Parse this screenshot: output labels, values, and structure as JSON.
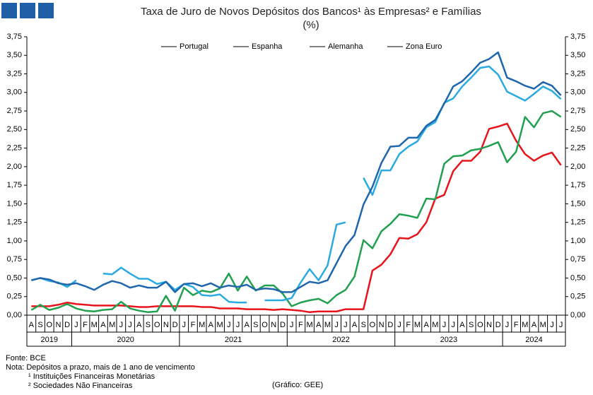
{
  "chart_data": {
    "type": "line",
    "title": "Taxa de Juro de Novos Depósitos dos Bancos¹ às Empresas² e Famílias",
    "subtitle": "(%)",
    "categories": [
      "A",
      "S",
      "O",
      "N",
      "D",
      "J",
      "F",
      "M",
      "A",
      "M",
      "J",
      "J",
      "A",
      "S",
      "O",
      "N",
      "D",
      "J",
      "F",
      "M",
      "A",
      "M",
      "J",
      "J",
      "A",
      "S",
      "O",
      "N",
      "D",
      "J",
      "F",
      "M",
      "A",
      "M",
      "J",
      "J",
      "A",
      "S",
      "O",
      "N",
      "D",
      "J",
      "F",
      "M",
      "A",
      "M",
      "J",
      "J",
      "A",
      "S",
      "O",
      "N",
      "D",
      "J",
      "F",
      "M",
      "A",
      "M",
      "J",
      "J"
    ],
    "years": [
      "2019",
      "2020",
      "2021",
      "2022",
      "2023",
      "2024"
    ],
    "series": [
      {
        "name": "Portugal",
        "color": "#e8141b",
        "values": [
          0.12,
          0.12,
          0.12,
          0.14,
          0.17,
          0.15,
          0.14,
          0.13,
          0.13,
          0.13,
          0.13,
          0.12,
          0.11,
          0.11,
          0.12,
          0.12,
          0.12,
          0.12,
          0.12,
          0.11,
          0.11,
          0.09,
          0.09,
          0.09,
          0.08,
          0.08,
          0.08,
          0.07,
          0.08,
          0.07,
          0.06,
          0.04,
          0.05,
          0.05,
          0.05,
          0.08,
          0.08,
          0.08,
          0.6,
          0.68,
          0.82,
          1.04,
          1.03,
          1.09,
          1.25,
          1.57,
          1.62,
          1.94,
          2.08,
          2.08,
          2.2,
          2.51,
          2.54,
          2.58,
          2.35,
          2.17,
          2.08,
          2.15,
          2.19,
          2.02
        ]
      },
      {
        "name": "Espanha",
        "color": "#21a050",
        "values": [
          0.07,
          0.14,
          0.07,
          0.1,
          0.15,
          0.09,
          0.06,
          0.05,
          0.07,
          0.08,
          0.18,
          0.09,
          0.06,
          0.04,
          0.05,
          0.26,
          0.06,
          0.37,
          0.27,
          0.33,
          0.31,
          0.36,
          0.56,
          0.33,
          0.52,
          0.33,
          0.4,
          0.4,
          0.29,
          0.12,
          0.17,
          0.2,
          0.22,
          0.16,
          0.27,
          0.34,
          0.52,
          1.01,
          0.9,
          1.13,
          1.23,
          1.36,
          1.34,
          1.31,
          1.57,
          1.56,
          2.04,
          2.14,
          2.15,
          2.22,
          2.24,
          2.28,
          2.33,
          2.06,
          2.2,
          2.67,
          2.53,
          2.72,
          2.75,
          2.67
        ]
      },
      {
        "name": "Alemanha",
        "color": "#29abe2",
        "values": [
          0.47,
          0.5,
          0.46,
          0.44,
          0.38,
          0.47,
          null,
          null,
          0.56,
          0.55,
          0.64,
          0.56,
          0.49,
          0.49,
          0.42,
          0.45,
          0.34,
          0.42,
          0.38,
          0.27,
          0.26,
          0.28,
          0.18,
          0.17,
          0.17,
          null,
          0.2,
          0.2,
          0.2,
          0.23,
          0.44,
          0.62,
          0.47,
          0.67,
          1.22,
          1.25,
          null,
          1.85,
          1.62,
          1.95,
          1.95,
          2.17,
          2.27,
          2.34,
          2.53,
          2.6,
          2.86,
          2.92,
          3.08,
          3.2,
          3.33,
          3.35,
          3.24,
          3.01,
          2.95,
          2.89,
          2.98,
          3.08,
          3.02,
          2.91
        ]
      },
      {
        "name": "Zona Euro",
        "color": "#1f66ad",
        "values": [
          0.47,
          0.5,
          0.48,
          0.43,
          0.41,
          0.43,
          0.39,
          0.34,
          0.41,
          0.46,
          0.43,
          0.37,
          0.4,
          0.37,
          0.37,
          0.45,
          0.31,
          0.42,
          0.43,
          0.39,
          0.43,
          0.37,
          0.4,
          0.38,
          0.41,
          0.34,
          0.36,
          0.35,
          0.31,
          0.31,
          0.38,
          0.45,
          0.43,
          0.47,
          0.7,
          0.93,
          1.08,
          1.49,
          1.73,
          2.05,
          2.27,
          2.28,
          2.39,
          2.39,
          2.55,
          2.63,
          2.85,
          3.08,
          3.15,
          3.27,
          3.4,
          3.45,
          3.54,
          3.2,
          3.15,
          3.09,
          3.05,
          3.14,
          3.09,
          2.96
        ]
      }
    ],
    "ylim": [
      0,
      3.75
    ],
    "yticks": [
      {
        "value": 0,
        "label": "0,00"
      },
      {
        "value": 0.25,
        "label": "0,25"
      },
      {
        "value": 0.5,
        "label": "0,50"
      },
      {
        "value": 0.75,
        "label": "0,75"
      },
      {
        "value": 1,
        "label": "1,00"
      },
      {
        "value": 1.25,
        "label": "1,25"
      },
      {
        "value": 1.5,
        "label": "1,50"
      },
      {
        "value": 1.75,
        "label": "1,75"
      },
      {
        "value": 2,
        "label": "2,00"
      },
      {
        "value": 2.25,
        "label": "2,25"
      },
      {
        "value": 2.5,
        "label": "2,50"
      },
      {
        "value": 2.75,
        "label": "2,75"
      },
      {
        "value": 3,
        "label": "3,00"
      },
      {
        "value": 3.25,
        "label": "3,25"
      },
      {
        "value": 3.5,
        "label": "3,50"
      },
      {
        "value": 3.75,
        "label": "3,75"
      }
    ],
    "y2lim": [
      0,
      3.75
    ],
    "y2ticks": [
      {
        "value": 0,
        "label": "0,00"
      },
      {
        "value": 0.25,
        "label": "0,25"
      },
      {
        "value": 0.5,
        "label": "0,50"
      },
      {
        "value": 0.75,
        "label": "0,75"
      },
      {
        "value": 1,
        "label": "1,00"
      },
      {
        "value": 1.25,
        "label": "1,25"
      },
      {
        "value": 1.5,
        "label": "1,50"
      },
      {
        "value": 1.75,
        "label": "1,75"
      },
      {
        "value": 2,
        "label": "2,00"
      },
      {
        "value": 2.25,
        "label": "2,25"
      },
      {
        "value": 2.5,
        "label": "2,50"
      },
      {
        "value": 2.75,
        "label": "2,75"
      },
      {
        "value": 3,
        "label": "3,00"
      },
      {
        "value": 3.25,
        "label": "3,25"
      },
      {
        "value": 3.5,
        "label": "3,50"
      },
      {
        "value": 3.75,
        "label": "3,75"
      }
    ],
    "grid": false,
    "legend": "top",
    "source": "Fonte: BCE",
    "notes": [
      "Nota: Depósitos a prazo, mais de 1 ano de vencimento",
      "¹ Instituições Financeiras Monetárias",
      "² Sociedades Não Financeiras"
    ],
    "credit": "(Gráfico: GEE)"
  }
}
